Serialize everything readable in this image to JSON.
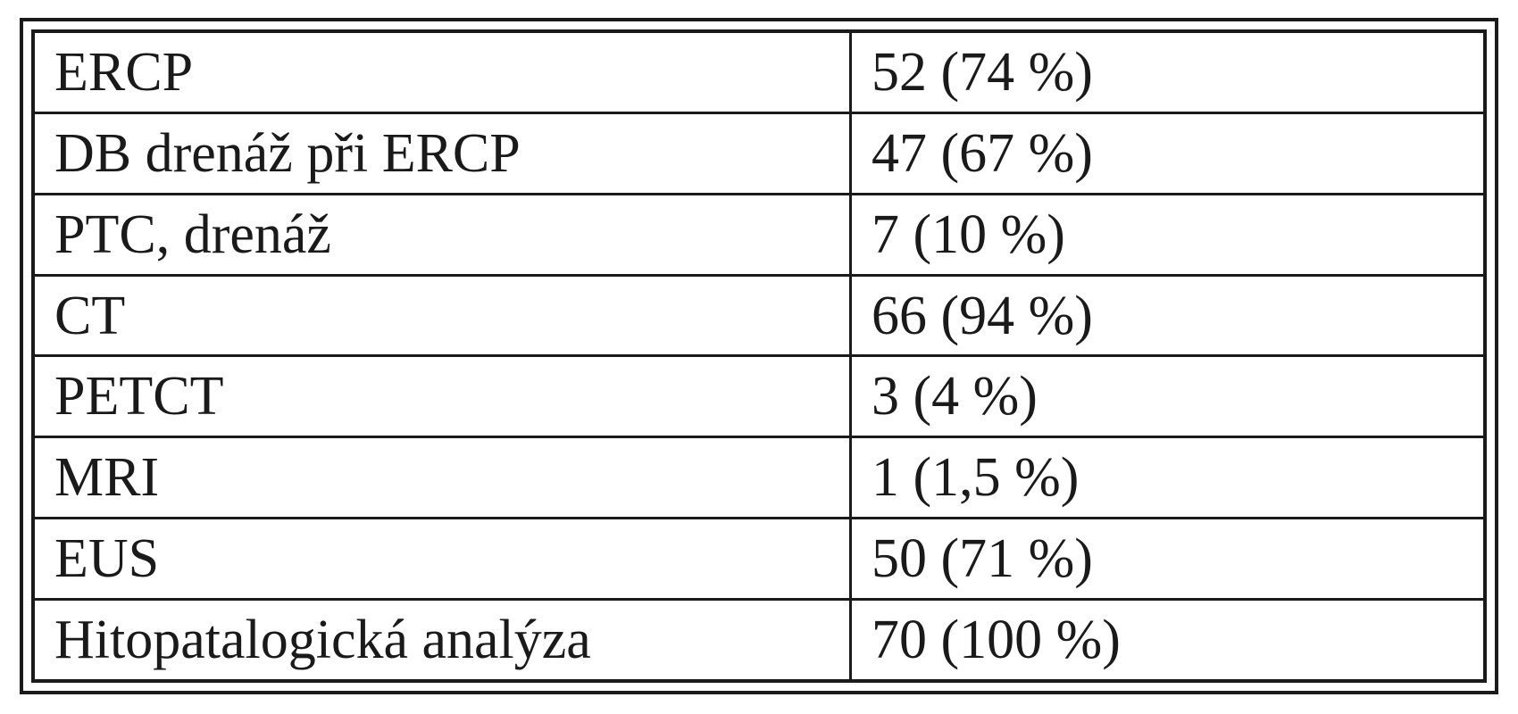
{
  "table": {
    "rows": [
      [
        "ERCP",
        "52 (74 %)"
      ],
      [
        "DB drenáž při ERCP",
        "47 (67 %)"
      ],
      [
        "PTC, drenáž",
        "7 (10 %)"
      ],
      [
        "CT",
        "66 (94 %)"
      ],
      [
        "PETCT",
        "3 (4 %)"
      ],
      [
        "MRI",
        "1 (1,5 %)"
      ],
      [
        "EUS",
        "50 (71 %)"
      ],
      [
        "Hitopatalogická analýza",
        "70 (100 %)"
      ]
    ]
  }
}
